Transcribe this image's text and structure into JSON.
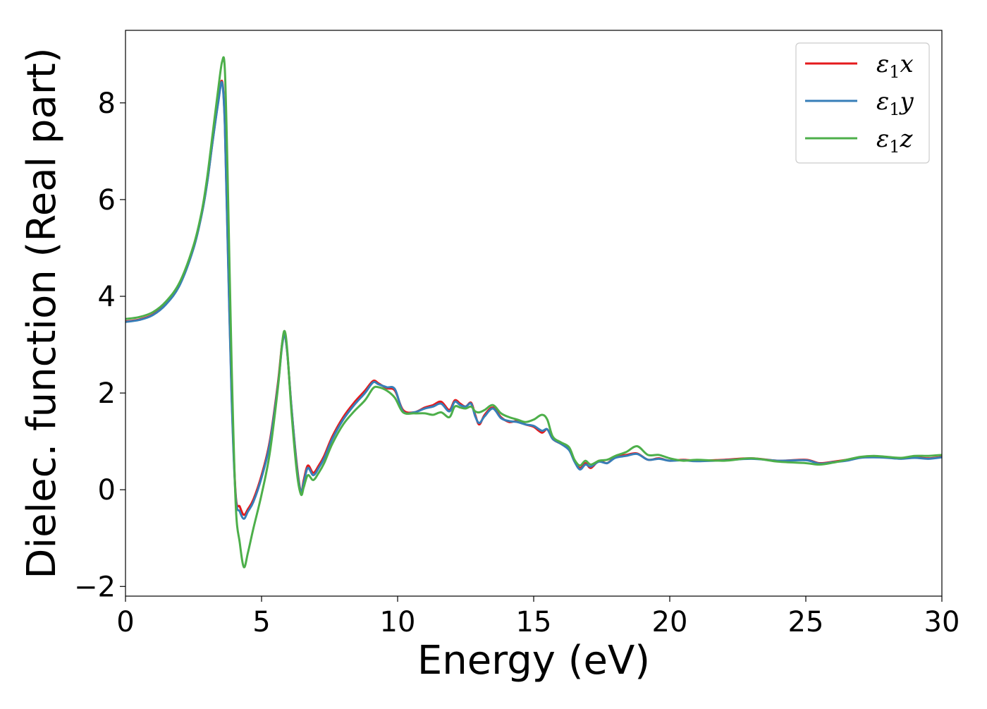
{
  "chart_data": {
    "type": "line",
    "title": "",
    "xlabel": "Energy (eV)",
    "ylabel": "Dielec. function (Real part)",
    "xlim": [
      0,
      30
    ],
    "ylim": [
      -2.2,
      9.5
    ],
    "xticks": [
      0,
      5,
      10,
      15,
      20,
      25,
      30
    ],
    "xtick_labels": [
      "0",
      "5",
      "10",
      "15",
      "20",
      "25",
      "30"
    ],
    "yticks": [
      -2,
      0,
      2,
      4,
      6,
      8
    ],
    "ytick_labels": [
      "−2",
      "0",
      "2",
      "4",
      "6",
      "8"
    ],
    "grid": false,
    "legend_position": "top-right",
    "series": [
      {
        "name": "ε1x",
        "legend_main": "ε",
        "legend_sub": "1",
        "legend_var": "x",
        "color": "#e41a1c",
        "x": [
          0,
          0.5,
          1,
          1.5,
          2,
          2.5,
          2.8,
          3.0,
          3.2,
          3.4,
          3.55,
          3.65,
          3.75,
          3.9,
          4.05,
          4.2,
          4.35,
          4.5,
          4.7,
          5.0,
          5.3,
          5.6,
          5.75,
          5.85,
          5.95,
          6.1,
          6.3,
          6.45,
          6.55,
          6.7,
          6.9,
          7.1,
          7.3,
          7.6,
          8.0,
          8.4,
          8.8,
          9.1,
          9.3,
          9.6,
          9.9,
          10.2,
          10.6,
          11.0,
          11.3,
          11.6,
          11.9,
          12.1,
          12.3,
          12.5,
          12.7,
          12.85,
          13.0,
          13.2,
          13.5,
          13.8,
          14.1,
          14.4,
          14.7,
          15.0,
          15.3,
          15.5,
          15.7,
          16.0,
          16.3,
          16.5,
          16.7,
          16.9,
          17.1,
          17.4,
          17.7,
          18.0,
          18.4,
          18.8,
          19.2,
          19.6,
          20.0,
          20.5,
          21.0,
          22.0,
          23.0,
          24.0,
          25.0,
          25.5,
          26.0,
          26.5,
          27.0,
          27.5,
          28.0,
          28.5,
          29.0,
          29.5,
          30.0
        ],
        "y": [
          3.48,
          3.52,
          3.62,
          3.85,
          4.25,
          5.0,
          5.7,
          6.35,
          7.2,
          8.0,
          8.45,
          7.6,
          5.3,
          2.0,
          -0.1,
          -0.35,
          -0.52,
          -0.4,
          -0.2,
          0.3,
          1.0,
          2.2,
          3.0,
          3.2,
          2.8,
          1.7,
          0.5,
          -0.05,
          0.2,
          0.5,
          0.35,
          0.5,
          0.7,
          1.1,
          1.5,
          1.8,
          2.05,
          2.25,
          2.2,
          2.1,
          2.05,
          1.65,
          1.6,
          1.7,
          1.75,
          1.82,
          1.65,
          1.85,
          1.78,
          1.72,
          1.8,
          1.55,
          1.35,
          1.55,
          1.7,
          1.5,
          1.4,
          1.42,
          1.35,
          1.3,
          1.18,
          1.25,
          1.05,
          0.95,
          0.85,
          0.6,
          0.45,
          0.55,
          0.45,
          0.6,
          0.55,
          0.68,
          0.72,
          0.75,
          0.62,
          0.65,
          0.6,
          0.62,
          0.6,
          0.62,
          0.65,
          0.6,
          0.62,
          0.55,
          0.58,
          0.62,
          0.67,
          0.68,
          0.67,
          0.65,
          0.67,
          0.65,
          0.68
        ]
      },
      {
        "name": "ε1y",
        "legend_main": "ε",
        "legend_sub": "1",
        "legend_var": "y",
        "color": "#377eb8",
        "x": [
          0,
          0.5,
          1,
          1.5,
          2,
          2.5,
          2.8,
          3.0,
          3.2,
          3.4,
          3.55,
          3.65,
          3.75,
          3.9,
          4.05,
          4.2,
          4.35,
          4.5,
          4.7,
          5.0,
          5.3,
          5.6,
          5.75,
          5.85,
          5.95,
          6.1,
          6.3,
          6.45,
          6.55,
          6.7,
          6.9,
          7.1,
          7.3,
          7.6,
          8.0,
          8.4,
          8.8,
          9.1,
          9.3,
          9.6,
          9.9,
          10.2,
          10.6,
          11.0,
          11.3,
          11.6,
          11.9,
          12.1,
          12.3,
          12.5,
          12.7,
          12.85,
          13.0,
          13.2,
          13.5,
          13.8,
          14.1,
          14.4,
          14.7,
          15.0,
          15.3,
          15.5,
          15.7,
          16.0,
          16.3,
          16.5,
          16.7,
          16.9,
          17.1,
          17.4,
          17.7,
          18.0,
          18.4,
          18.8,
          19.2,
          19.6,
          20.0,
          20.5,
          21.0,
          22.0,
          23.0,
          24.0,
          25.0,
          25.5,
          26.0,
          26.5,
          27.0,
          27.5,
          28.0,
          28.5,
          29.0,
          29.5,
          30.0
        ],
        "y": [
          3.47,
          3.51,
          3.61,
          3.84,
          4.24,
          4.99,
          5.69,
          6.34,
          7.19,
          7.98,
          8.42,
          7.55,
          5.2,
          1.9,
          -0.15,
          -0.45,
          -0.6,
          -0.45,
          -0.25,
          0.25,
          0.95,
          2.15,
          2.95,
          3.2,
          2.8,
          1.7,
          0.45,
          -0.05,
          0.15,
          0.45,
          0.3,
          0.45,
          0.65,
          1.05,
          1.45,
          1.75,
          2.0,
          2.22,
          2.18,
          2.12,
          2.08,
          1.62,
          1.6,
          1.68,
          1.72,
          1.78,
          1.62,
          1.82,
          1.75,
          1.72,
          1.78,
          1.52,
          1.38,
          1.52,
          1.68,
          1.48,
          1.42,
          1.4,
          1.35,
          1.32,
          1.22,
          1.25,
          1.05,
          0.95,
          0.82,
          0.58,
          0.42,
          0.52,
          0.48,
          0.58,
          0.55,
          0.66,
          0.7,
          0.74,
          0.62,
          0.64,
          0.6,
          0.61,
          0.59,
          0.61,
          0.64,
          0.6,
          0.61,
          0.54,
          0.57,
          0.6,
          0.66,
          0.67,
          0.66,
          0.64,
          0.66,
          0.64,
          0.67
        ]
      },
      {
        "name": "ε1z",
        "legend_main": "ε",
        "legend_sub": "1",
        "legend_var": "z",
        "color": "#4daf4a",
        "x": [
          0,
          0.5,
          1,
          1.5,
          2,
          2.5,
          2.8,
          3.0,
          3.2,
          3.4,
          3.55,
          3.65,
          3.75,
          3.9,
          4.05,
          4.2,
          4.35,
          4.5,
          4.7,
          5.0,
          5.3,
          5.6,
          5.75,
          5.85,
          5.95,
          6.1,
          6.3,
          6.45,
          6.55,
          6.7,
          6.9,
          7.1,
          7.3,
          7.6,
          8.0,
          8.4,
          8.8,
          9.1,
          9.3,
          9.6,
          9.9,
          10.2,
          10.6,
          11.0,
          11.3,
          11.6,
          11.9,
          12.1,
          12.3,
          12.5,
          12.7,
          12.85,
          13.0,
          13.2,
          13.5,
          13.8,
          14.1,
          14.4,
          14.7,
          15.0,
          15.3,
          15.5,
          15.7,
          16.0,
          16.3,
          16.5,
          16.7,
          16.9,
          17.1,
          17.4,
          17.7,
          18.0,
          18.4,
          18.8,
          19.2,
          19.6,
          20.0,
          20.5,
          21.0,
          22.0,
          23.0,
          24.0,
          25.0,
          25.5,
          26.0,
          26.5,
          27.0,
          27.5,
          28.0,
          28.5,
          29.0,
          29.5,
          30.0
        ],
        "y": [
          3.53,
          3.57,
          3.67,
          3.9,
          4.3,
          5.05,
          5.75,
          6.45,
          7.35,
          8.25,
          8.85,
          8.7,
          6.6,
          2.6,
          -0.3,
          -1.1,
          -1.6,
          -1.3,
          -0.8,
          -0.1,
          0.75,
          2.1,
          3.0,
          3.28,
          2.85,
          1.6,
          0.35,
          -0.1,
          0.05,
          0.3,
          0.2,
          0.35,
          0.55,
          0.95,
          1.35,
          1.62,
          1.85,
          2.1,
          2.12,
          2.05,
          1.9,
          1.6,
          1.58,
          1.58,
          1.55,
          1.6,
          1.5,
          1.72,
          1.7,
          1.68,
          1.72,
          1.62,
          1.6,
          1.65,
          1.75,
          1.58,
          1.5,
          1.45,
          1.4,
          1.45,
          1.55,
          1.45,
          1.1,
          0.98,
          0.88,
          0.62,
          0.5,
          0.6,
          0.52,
          0.6,
          0.62,
          0.7,
          0.78,
          0.9,
          0.72,
          0.72,
          0.65,
          0.6,
          0.62,
          0.6,
          0.65,
          0.58,
          0.55,
          0.52,
          0.56,
          0.62,
          0.68,
          0.7,
          0.68,
          0.66,
          0.7,
          0.7,
          0.72
        ]
      }
    ]
  }
}
